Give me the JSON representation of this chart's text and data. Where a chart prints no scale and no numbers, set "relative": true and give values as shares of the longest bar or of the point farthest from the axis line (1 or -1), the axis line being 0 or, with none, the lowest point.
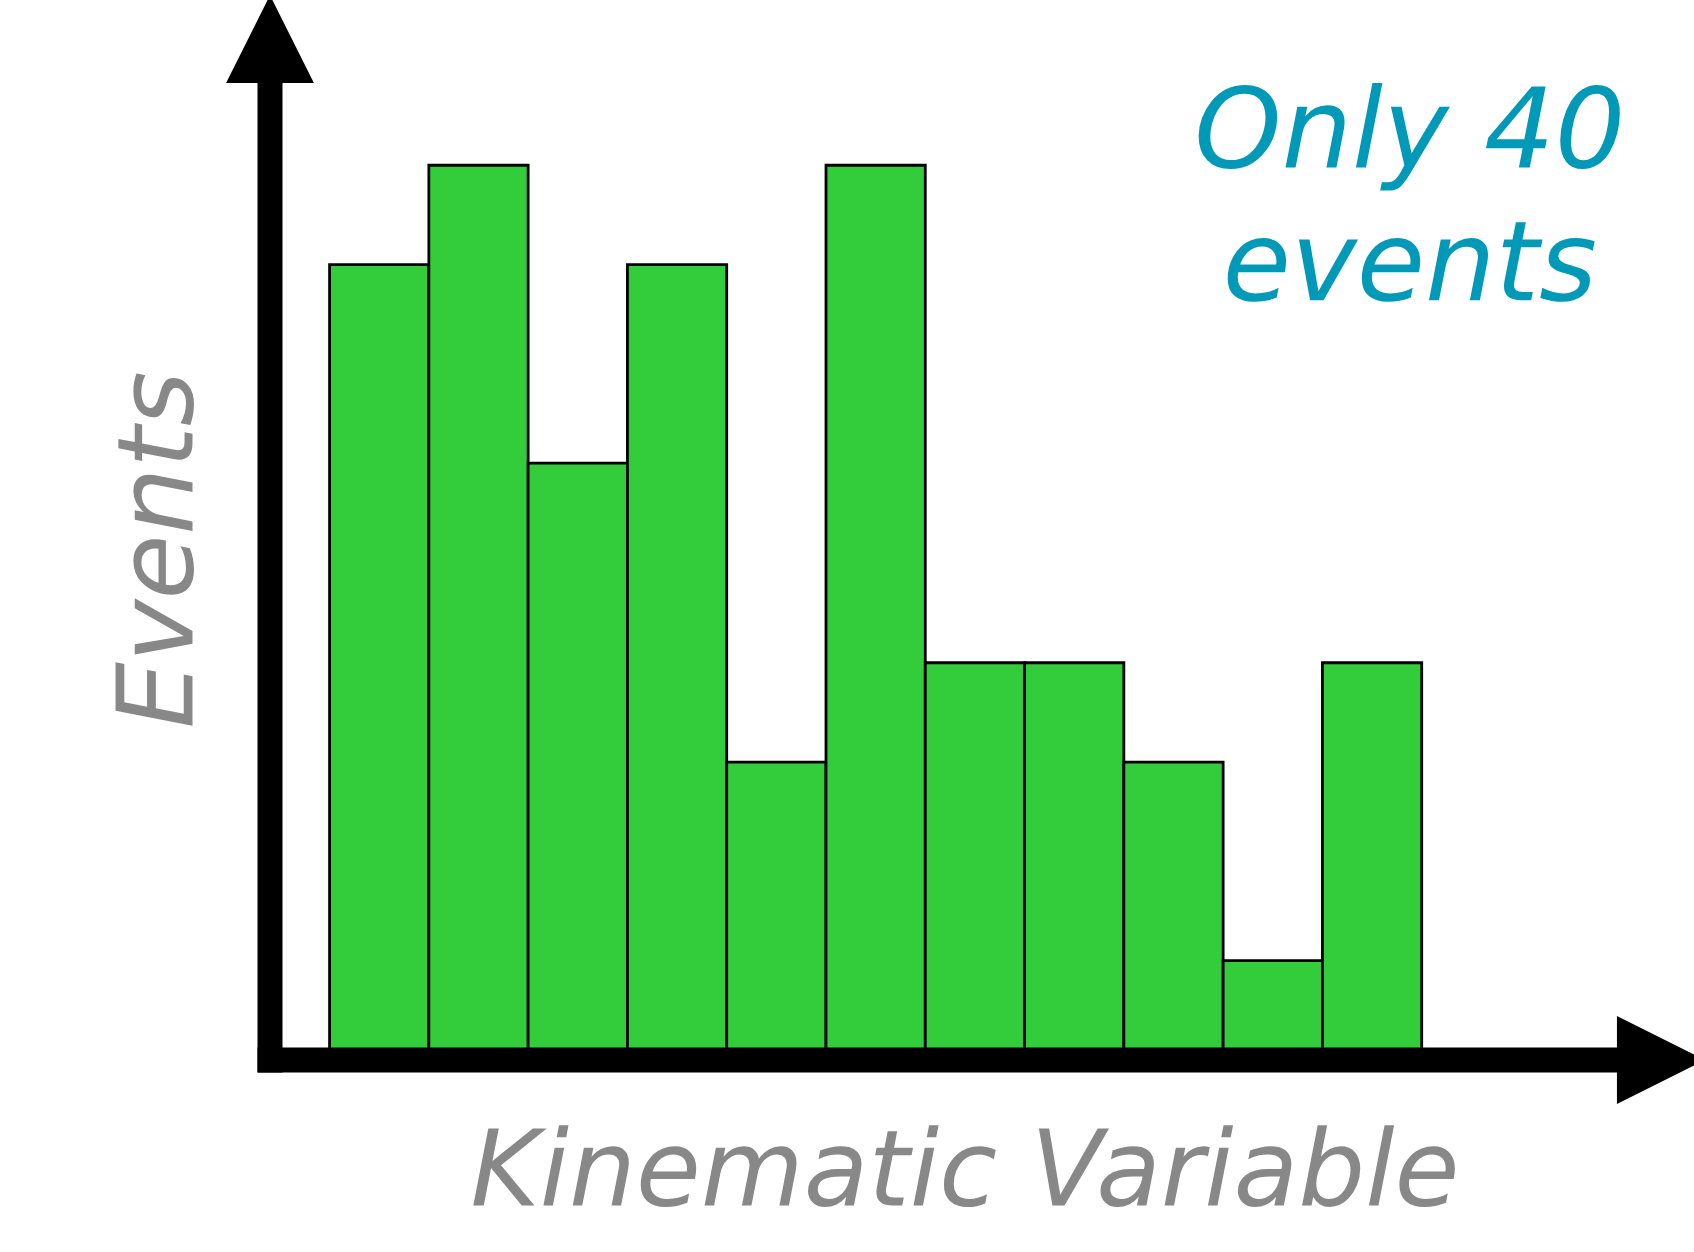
{
  "chart_data": {
    "type": "bar",
    "relative": true,
    "categories": [
      null,
      null,
      null,
      null,
      null,
      null,
      null,
      null,
      null,
      null,
      null
    ],
    "xlabel": "Kinematic Variable",
    "ylabel": "Events",
    "series": [
      {
        "color": "#33cc3a",
        "values": [
          0.889,
          1,
          0.667,
          0.889,
          0.333,
          1,
          0.444,
          0.444,
          0.333,
          0.111,
          0.444
        ]
      }
    ],
    "annotations": [
      "Only 40\nevents"
    ],
    "grid": false,
    "legend": false
  }
}
